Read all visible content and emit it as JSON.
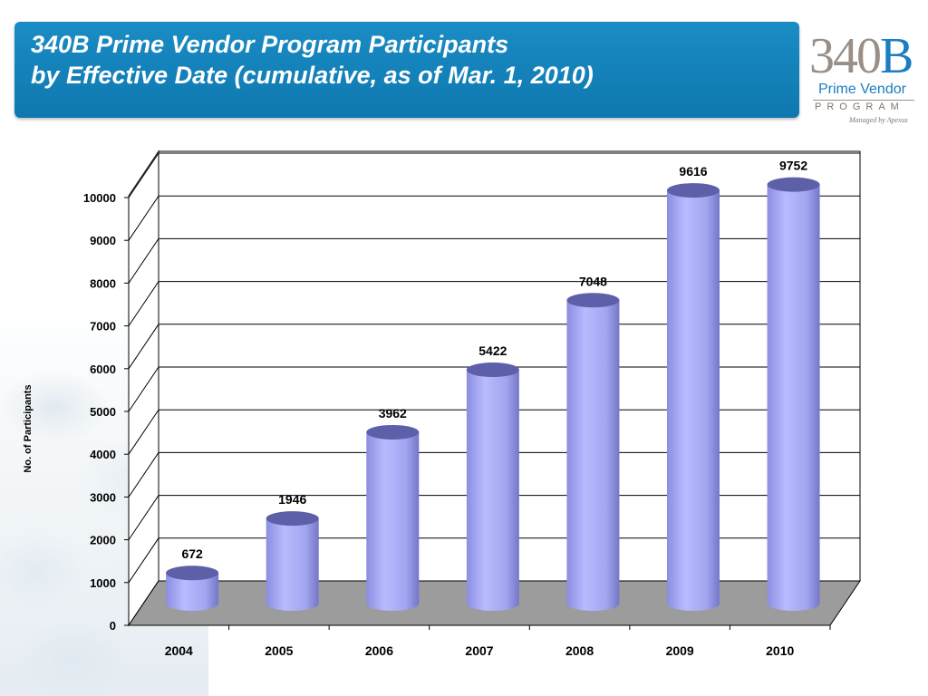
{
  "title": {
    "line1": "340B Prime Vendor Program Participants",
    "line2": "by Effective Date (cumulative, as of Mar. 1, 2010)"
  },
  "logo": {
    "number": "340",
    "letter": "B",
    "subtitle": "Prime Vendor",
    "program": "PROGRAM",
    "managed": "Managed by Apexus"
  },
  "colors": {
    "title_bar": "#1080b8",
    "bar_fill": "#a6a8f0",
    "bar_top": "#5c5fa8",
    "floor": "#999999"
  },
  "chart_data": {
    "type": "bar",
    "style": "3d-cylinder",
    "categories": [
      "2004",
      "2005",
      "2006",
      "2007",
      "2008",
      "2009",
      "2010"
    ],
    "values": [
      672,
      1946,
      3962,
      5422,
      7048,
      9616,
      9752
    ],
    "data_labels": [
      "672",
      "1946",
      "3962",
      "5422",
      "7048",
      "9616",
      "9752"
    ],
    "ylabel": "No. of Participants",
    "xlabel": "",
    "ylim": [
      0,
      10000
    ],
    "yticks": [
      0,
      1000,
      2000,
      3000,
      4000,
      5000,
      6000,
      7000,
      8000,
      9000,
      10000
    ],
    "grid": true,
    "legend": "none"
  }
}
